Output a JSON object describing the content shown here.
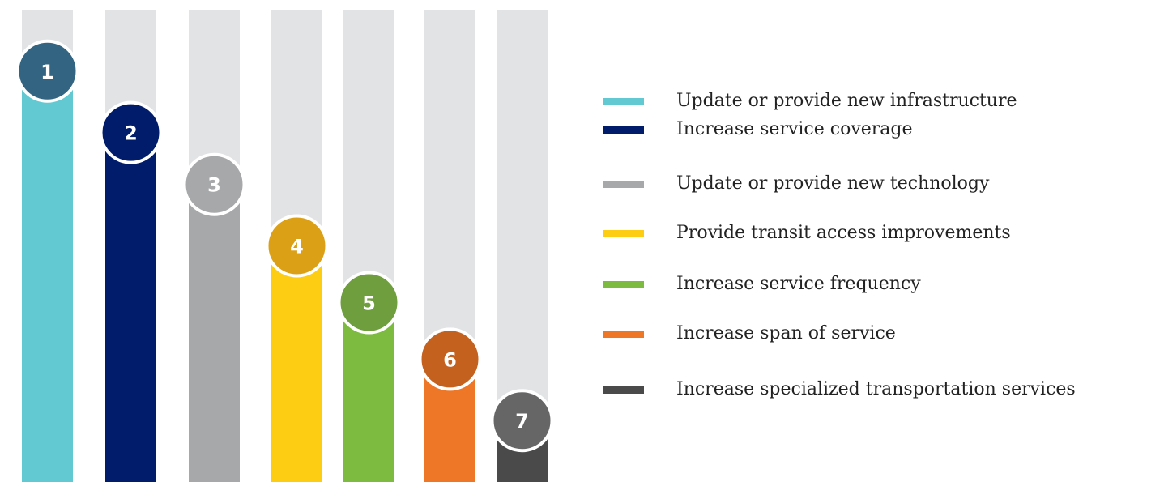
{
  "chart_data": {
    "type": "bar",
    "categories": [
      "Update or provide new infrastructure",
      "Increase service coverage",
      "Update or provide new technology",
      "Provide transit access improvements",
      "Increase service frequency",
      "Increase span of service",
      "Increase specialized transportation services"
    ],
    "values": [
      87,
      74,
      63,
      50,
      38,
      26,
      13
    ],
    "ranks": [
      1,
      2,
      3,
      4,
      5,
      6,
      7
    ],
    "colors": [
      "#62c9d3",
      "#001c6b",
      "#a7a8aa",
      "#fccd12",
      "#7dbb40",
      "#ed7727",
      "#4a4a4a"
    ],
    "badge_colors": [
      "#336582",
      "#001c6b",
      "#a7a8aa",
      "#dba016",
      "#6f9e3e",
      "#c5611f",
      "#666666"
    ],
    "track_color": "#e2e3e5",
    "ylim": [
      0,
      100
    ]
  }
}
